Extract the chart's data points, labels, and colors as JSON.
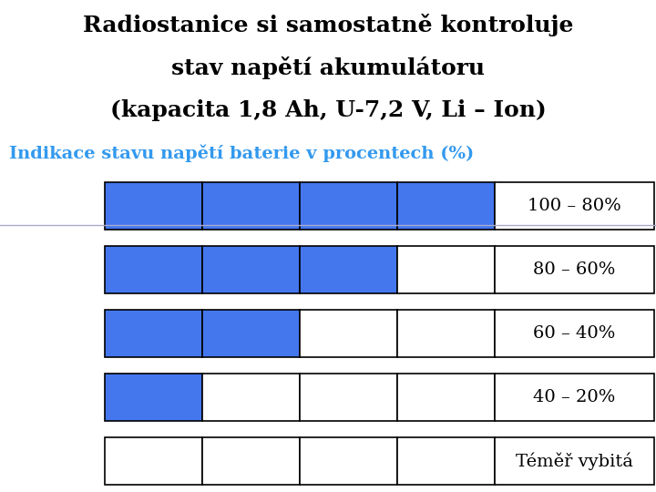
{
  "title_line1": "Radiostanice si samostatně kontroluje",
  "title_line2": "stav napětí akumulátoru",
  "title_line3": "(kapacita 1,8 Ah, U-7,2 V, Li – Ion)",
  "subtitle": "Indikace stavu napětí baterie v procentech (%)",
  "title_color": "#000000",
  "subtitle_color": "#3399ee",
  "blue_color": "#4477ee",
  "white_color": "#ffffff",
  "border_color": "#000000",
  "background_color": "#ffffff",
  "bars": [
    {
      "filled": 4,
      "total": 4,
      "label": "100 – 80%"
    },
    {
      "filled": 3,
      "total": 4,
      "label": "80 – 60%"
    },
    {
      "filled": 2,
      "total": 4,
      "label": "60 – 40%"
    },
    {
      "filled": 1,
      "total": 4,
      "label": "40 – 20%"
    },
    {
      "filled": 0,
      "total": 4,
      "label": "Téměř vybitá"
    }
  ],
  "fig_width": 7.2,
  "fig_height": 5.4,
  "dpi": 100
}
